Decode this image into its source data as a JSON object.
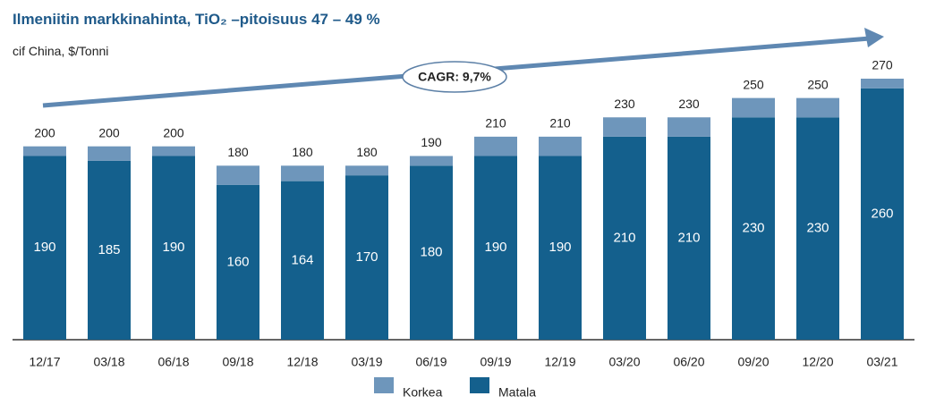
{
  "chart_data": {
    "type": "bar",
    "title": "Ilmeniitin markkinahinta, TiO₂ –pitoisuus 47 – 49 %",
    "subtitle": "cif China, $/Tonni",
    "annotation": "CAGR: 9,7%",
    "categories": [
      "12/17",
      "03/18",
      "06/18",
      "09/18",
      "12/18",
      "03/19",
      "06/19",
      "09/19",
      "12/19",
      "03/20",
      "06/20",
      "09/20",
      "12/20",
      "03/21"
    ],
    "series": [
      {
        "name": "Korkea",
        "color": "#6e96bb",
        "values": [
          200,
          200,
          200,
          180,
          180,
          180,
          190,
          210,
          210,
          230,
          230,
          250,
          250,
          270
        ]
      },
      {
        "name": "Matala",
        "color": "#14608d",
        "values": [
          190,
          185,
          190,
          160,
          164,
          170,
          180,
          190,
          190,
          210,
          210,
          230,
          230,
          260
        ]
      }
    ],
    "ylim": [
      0,
      270
    ]
  }
}
